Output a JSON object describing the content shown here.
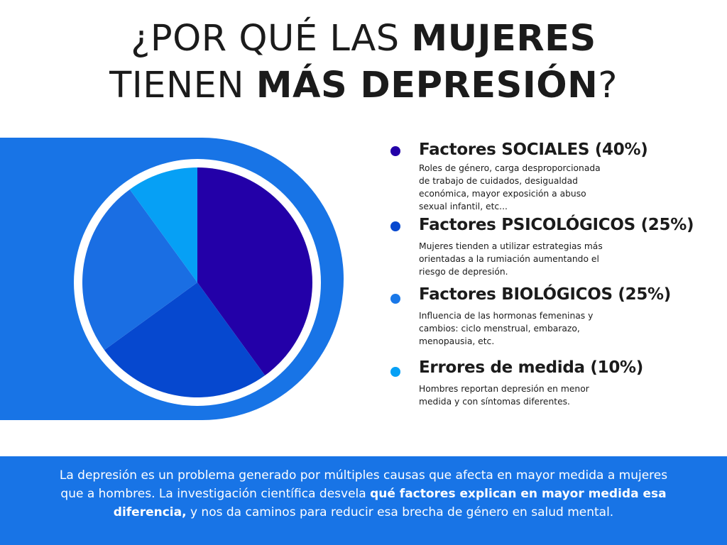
{
  "title": {
    "line1_normal": "¿POR QUÉ LAS ",
    "line1_bold": "MUJERES",
    "line2_normal": "TIENEN ",
    "line2_bold": "MÁS DEPRESIÓN",
    "line2_end": "?"
  },
  "chart_data": {
    "type": "pie",
    "title": "",
    "slices": [
      {
        "label": "Factores SOCIALES (40%)",
        "value": 40,
        "color": "#2300a8"
      },
      {
        "label": "Factores PSICOLÓGICOS (25%)",
        "value": 25,
        "color": "#0648cf"
      },
      {
        "label": "Factores BIOLÓGICOS (25%)",
        "value": 25,
        "color": "#1a6ee3"
      },
      {
        "label": "Errores de medida (10%)",
        "value": 10,
        "color": "#06a0f5"
      }
    ]
  },
  "legend": [
    {
      "title": "Factores SOCIALES (40%)",
      "description": "Roles de género, carga desproporcionada de trabajo de cuidados, desigualdad económica, mayor exposición a abuso sexual infantil, etc...",
      "dot_color": "#2300a8"
    },
    {
      "title": "Factores PSICOLÓGICOS (25%)",
      "description": "Mujeres tienden a utilizar estrategias más orientadas a la rumiación aumentando el riesgo de depresión.",
      "dot_color": "#0648cf"
    },
    {
      "title": "Factores BIOLÓGICOS (25%)",
      "description": "Influencia de las hormonas femeninas y cambios: ciclo menstrual, embarazo, menopausia, etc.",
      "dot_color": "#1a78e8"
    },
    {
      "title": "Errores de medida (10%)",
      "description": "Hombres reportan depresión en menor medida y con síntomas diferentes.",
      "dot_color": "#06a0f5"
    }
  ],
  "footer": {
    "text_before": "La depresión es un problema generado por múltiples causas que afecta en mayor medida a mujeres que a hombres. La investigación científica desvela ",
    "text_bold": "qué factores explican en mayor medida esa diferencia,",
    "text_after": " y nos da caminos para reducir esa brecha de género en salud mental."
  }
}
